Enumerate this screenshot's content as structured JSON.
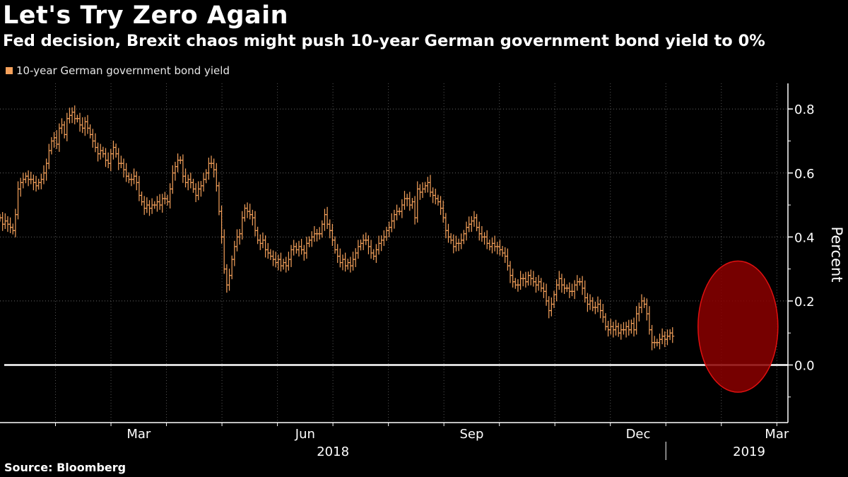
{
  "header": {
    "title": "Let's Try Zero Again",
    "subtitle": "Fed decision, Brexit chaos might push 10-year German government bond yield to 0%"
  },
  "footer": {
    "source": "Source: Bloomberg"
  },
  "colors": {
    "series": "#f5a15b",
    "background": "#000000",
    "zero_line": "#ffffff",
    "highlight_fill": "#8b0000",
    "highlight_stroke": "#e01010"
  },
  "chart_data": {
    "type": "bar",
    "style": "ohlc",
    "title": "Let's Try Zero Again",
    "subtitle": "Fed decision, Brexit chaos might push 10-year German government bond yield to 0%",
    "ylabel": "Percent",
    "xlabel": "",
    "ylim": [
      -0.18,
      0.88
    ],
    "yticks": [
      0.8,
      0.6,
      0.4,
      0.2,
      0.0
    ],
    "ytick_labels": [
      "0.8",
      "0.6",
      "0.4",
      "0.2",
      "0.0"
    ],
    "x_range_months": [
      0,
      14.2
    ],
    "xticks": [
      {
        "label": "Mar",
        "month": 2.5
      },
      {
        "label": "Jun",
        "month": 5.5
      },
      {
        "label": "Sep",
        "month": 8.5
      },
      {
        "label": "Dec",
        "month": 11.5
      },
      {
        "label": "Mar",
        "month": 14.0
      }
    ],
    "year_labels": [
      {
        "label": "2018",
        "month": 6.0
      },
      {
        "label": "2019",
        "month": 13.5
      }
    ],
    "month_gridlines": [
      1,
      2,
      3,
      4,
      5,
      6,
      7,
      8,
      9,
      10,
      11,
      12,
      13,
      14
    ],
    "year_boundary_month": 12,
    "grid": true,
    "legend": [
      {
        "name": "10-year German government bond yield",
        "position": "top-left"
      }
    ],
    "reference_line": {
      "y": 0.0,
      "label": "0.0"
    },
    "highlight": {
      "shape": "ellipse",
      "x_range_months": [
        12.58,
        14.02
      ],
      "y_range": [
        -0.085,
        0.325
      ]
    },
    "series": [
      {
        "name": "10-year German government bond yield",
        "x_start_month": 0,
        "x_step_months": 0.04644,
        "values": [
          0.46,
          0.44,
          0.45,
          0.44,
          0.43,
          0.42,
          0.47,
          0.55,
          0.57,
          0.58,
          0.59,
          0.58,
          0.58,
          0.57,
          0.56,
          0.57,
          0.58,
          0.6,
          0.63,
          0.67,
          0.7,
          0.71,
          0.69,
          0.74,
          0.75,
          0.72,
          0.77,
          0.78,
          0.79,
          0.77,
          0.77,
          0.75,
          0.74,
          0.76,
          0.74,
          0.72,
          0.7,
          0.68,
          0.66,
          0.67,
          0.66,
          0.64,
          0.63,
          0.66,
          0.68,
          0.66,
          0.63,
          0.63,
          0.61,
          0.59,
          0.58,
          0.58,
          0.59,
          0.57,
          0.53,
          0.51,
          0.49,
          0.5,
          0.49,
          0.5,
          0.5,
          0.51,
          0.5,
          0.52,
          0.52,
          0.51,
          0.55,
          0.6,
          0.62,
          0.64,
          0.64,
          0.59,
          0.57,
          0.58,
          0.57,
          0.55,
          0.53,
          0.55,
          0.56,
          0.58,
          0.6,
          0.63,
          0.63,
          0.61,
          0.56,
          0.48,
          0.4,
          0.3,
          0.25,
          0.28,
          0.33,
          0.37,
          0.4,
          0.41,
          0.46,
          0.49,
          0.48,
          0.47,
          0.46,
          0.42,
          0.39,
          0.38,
          0.39,
          0.36,
          0.35,
          0.34,
          0.33,
          0.32,
          0.33,
          0.31,
          0.32,
          0.31,
          0.33,
          0.36,
          0.37,
          0.36,
          0.37,
          0.36,
          0.35,
          0.38,
          0.39,
          0.4,
          0.41,
          0.41,
          0.41,
          0.44,
          0.47,
          0.44,
          0.42,
          0.39,
          0.36,
          0.34,
          0.32,
          0.33,
          0.31,
          0.32,
          0.31,
          0.33,
          0.35,
          0.37,
          0.38,
          0.39,
          0.39,
          0.37,
          0.35,
          0.34,
          0.36,
          0.38,
          0.39,
          0.4,
          0.42,
          0.43,
          0.45,
          0.47,
          0.48,
          0.48,
          0.5,
          0.52,
          0.52,
          0.5,
          0.51,
          0.46,
          0.55,
          0.54,
          0.55,
          0.56,
          0.57,
          0.54,
          0.53,
          0.52,
          0.51,
          0.49,
          0.46,
          0.42,
          0.4,
          0.39,
          0.37,
          0.38,
          0.38,
          0.39,
          0.41,
          0.43,
          0.44,
          0.45,
          0.46,
          0.43,
          0.41,
          0.4,
          0.4,
          0.38,
          0.37,
          0.38,
          0.37,
          0.37,
          0.36,
          0.35,
          0.34,
          0.31,
          0.28,
          0.26,
          0.25,
          0.25,
          0.27,
          0.27,
          0.26,
          0.28,
          0.27,
          0.26,
          0.25,
          0.26,
          0.24,
          0.23,
          0.2,
          0.17,
          0.19,
          0.22,
          0.25,
          0.27,
          0.25,
          0.24,
          0.24,
          0.23,
          0.23,
          0.25,
          0.26,
          0.26,
          0.24,
          0.21,
          0.19,
          0.2,
          0.18,
          0.18,
          0.19,
          0.17,
          0.15,
          0.12,
          0.11,
          0.12,
          0.11,
          0.12,
          0.1,
          0.11,
          0.11,
          0.12,
          0.11,
          0.13,
          0.11,
          0.16,
          0.18,
          0.2,
          0.19,
          0.16,
          0.11,
          0.07,
          0.07,
          0.07,
          0.08,
          0.09,
          0.08,
          0.09,
          0.1,
          0.09
        ]
      }
    ]
  }
}
